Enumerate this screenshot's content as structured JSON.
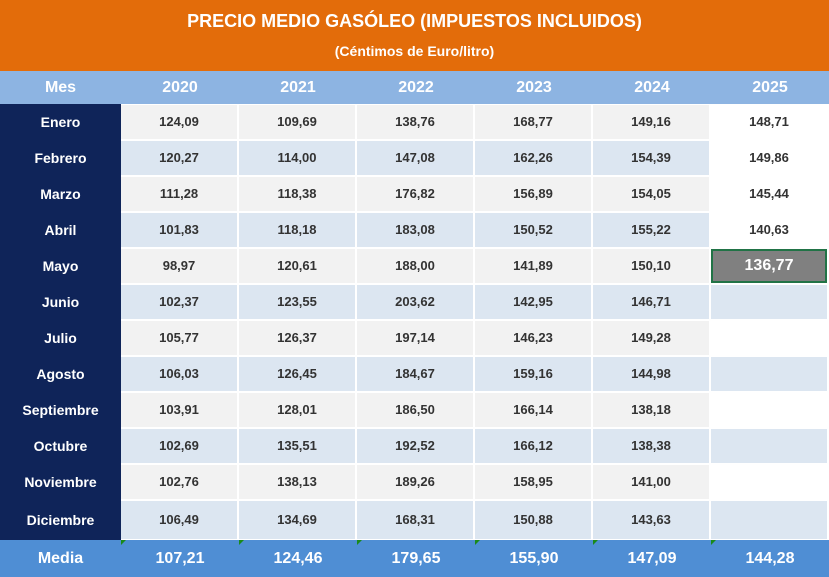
{
  "title": "PRECIO MEDIO GASÓLEO (IMPUESTOS INCLUIDOS)",
  "subtitle": "(Céntimos de Euro/litro)",
  "header": {
    "label": "Mes",
    "years": [
      "2020",
      "2021",
      "2022",
      "2023",
      "2024",
      "2025"
    ]
  },
  "rows": [
    {
      "month": "Enero",
      "values": [
        "124,09",
        "109,69",
        "138,76",
        "168,77",
        "149,16",
        "148,71"
      ]
    },
    {
      "month": "Febrero",
      "values": [
        "120,27",
        "114,00",
        "147,08",
        "162,26",
        "154,39",
        "149,86"
      ]
    },
    {
      "month": "Marzo",
      "values": [
        "111,28",
        "118,38",
        "176,82",
        "156,89",
        "154,05",
        "145,44"
      ]
    },
    {
      "month": "Abril",
      "values": [
        "101,83",
        "118,18",
        "183,08",
        "150,52",
        "155,22",
        "140,63"
      ]
    },
    {
      "month": "Mayo",
      "values": [
        "98,97",
        "120,61",
        "188,00",
        "141,89",
        "150,10",
        "136,77"
      ]
    },
    {
      "month": "Junio",
      "values": [
        "102,37",
        "123,55",
        "203,62",
        "142,95",
        "146,71",
        ""
      ]
    },
    {
      "month": "Julio",
      "values": [
        "105,77",
        "126,37",
        "197,14",
        "146,23",
        "149,28",
        ""
      ]
    },
    {
      "month": "Agosto",
      "values": [
        "106,03",
        "126,45",
        "184,67",
        "159,16",
        "144,98",
        ""
      ]
    },
    {
      "month": "Septiembre",
      "values": [
        "103,91",
        "128,01",
        "186,50",
        "166,14",
        "138,18",
        ""
      ]
    },
    {
      "month": "Octubre",
      "values": [
        "102,69",
        "135,51",
        "192,52",
        "166,12",
        "138,38",
        ""
      ]
    },
    {
      "month": "Noviembre",
      "values": [
        "102,76",
        "138,13",
        "189,26",
        "158,95",
        "141,00",
        ""
      ]
    },
    {
      "month": "Diciembre",
      "values": [
        "106,49",
        "134,69",
        "168,31",
        "150,88",
        "143,63",
        ""
      ]
    }
  ],
  "average": {
    "label": "Media",
    "values": [
      "107,21",
      "124,46",
      "179,65",
      "155,90",
      "147,09",
      "144,28"
    ]
  },
  "colors": {
    "title_band": "#e36c0a",
    "header_row": "#8db4e2",
    "month_column": "#0f2459",
    "average_row": "#4f8ed4",
    "selected_cell": "#808080",
    "selection_border": "#217346"
  }
}
